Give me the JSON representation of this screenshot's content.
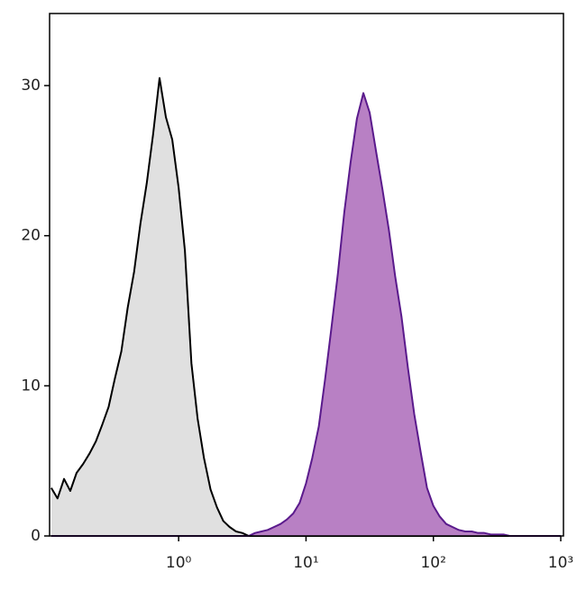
{
  "chart_data": {
    "type": "area",
    "log_x": true,
    "x": [
      0.1,
      0.112,
      0.126,
      0.141,
      0.158,
      0.178,
      0.2,
      0.224,
      0.251,
      0.282,
      0.316,
      0.355,
      0.398,
      0.447,
      0.501,
      0.562,
      0.631,
      0.708,
      0.794,
      0.891,
      1,
      1.12,
      1.26,
      1.41,
      1.58,
      1.78,
      2,
      2.24,
      2.51,
      2.82,
      3.16,
      3.55,
      3.98,
      4.47,
      5.01,
      5.62,
      6.31,
      7.08,
      7.94,
      8.91,
      10,
      11.2,
      12.6,
      14.1,
      15.8,
      17.8,
      20,
      22.4,
      25.1,
      28.2,
      31.6,
      35.5,
      39.8,
      44.7,
      50.1,
      56.2,
      63.1,
      70.8,
      79.4,
      89.1,
      100,
      112,
      126,
      141,
      158,
      178,
      200,
      224,
      251,
      282,
      316,
      355,
      398,
      447,
      501,
      562,
      631,
      708,
      794,
      891,
      1000
    ],
    "series": [
      {
        "color": "#000000",
        "fill": "#e0e0e0",
        "values": [
          3.2,
          2.5,
          3.8,
          3.0,
          4.2,
          4.8,
          5.5,
          6.3,
          7.4,
          8.6,
          10.5,
          12.3,
          15.2,
          17.6,
          20.8,
          23.5,
          26.8,
          30.5,
          27.9,
          26.4,
          23.2,
          19.0,
          11.5,
          7.8,
          5.2,
          3.1,
          1.9,
          1.0,
          0.6,
          0.3,
          0.2,
          0,
          0,
          0,
          0,
          0,
          0,
          0,
          0,
          0,
          0,
          0,
          0,
          0,
          0,
          0,
          0,
          0,
          0,
          0,
          0,
          0,
          0,
          0,
          0,
          0,
          0,
          0,
          0,
          0,
          0,
          0,
          0,
          0,
          0,
          0,
          0,
          0,
          0,
          0,
          0,
          0,
          0,
          0,
          0,
          0,
          0,
          0,
          0,
          0,
          0
        ]
      },
      {
        "color": "#5a1a8c",
        "fill": "#b880c4",
        "values": [
          0,
          0,
          0,
          0,
          0,
          0,
          0,
          0,
          0,
          0,
          0,
          0,
          0,
          0,
          0,
          0,
          0,
          0,
          0,
          0,
          0,
          0,
          0,
          0,
          0,
          0,
          0,
          0,
          0,
          0,
          0,
          0,
          0.2,
          0.3,
          0.4,
          0.6,
          0.8,
          1.1,
          1.5,
          2.2,
          3.5,
          5.2,
          7.3,
          10.4,
          13.8,
          17.5,
          21.6,
          24.9,
          27.8,
          29.5,
          28.2,
          25.6,
          23.1,
          20.4,
          17.3,
          14.6,
          11.2,
          8.1,
          5.6,
          3.2,
          2.0,
          1.3,
          0.8,
          0.6,
          0.4,
          0.3,
          0.3,
          0.2,
          0.2,
          0.1,
          0.1,
          0.1,
          0,
          0,
          0,
          0,
          0,
          0,
          0,
          0,
          0
        ]
      }
    ],
    "xlim": [
      0.097,
      1050
    ],
    "ylim": [
      0,
      34.8
    ],
    "xticks": [
      {
        "value": 1,
        "label": "10⁰"
      },
      {
        "value": 10,
        "label": "10¹"
      },
      {
        "value": 100,
        "label": "10²"
      },
      {
        "value": 1000,
        "label": "10³"
      }
    ],
    "yticks": [
      0,
      10,
      20,
      30
    ]
  }
}
